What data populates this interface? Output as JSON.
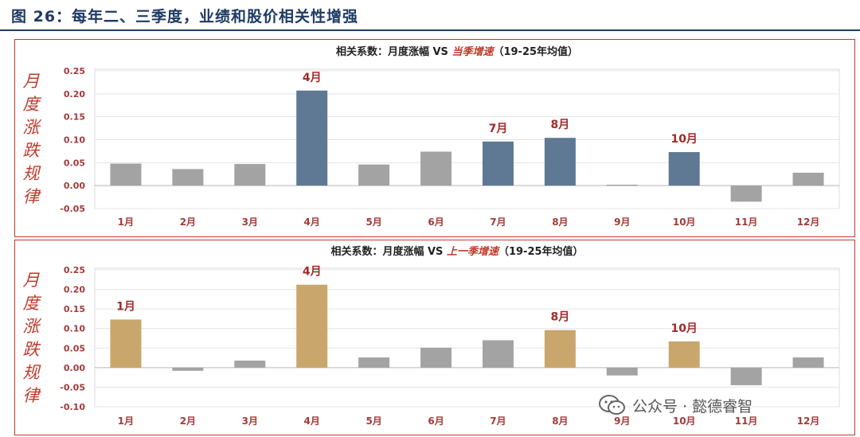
{
  "figure": {
    "title": "图 26：每年二、三季度，业绩和股价相关性增强"
  },
  "side_label": "月度涨跌规律",
  "watermark": "公众号 · 懿德睿智",
  "colors": {
    "highlight_blue": "#5f7893",
    "highlight_gold": "#c9a66b",
    "gray": "#a3a3a3",
    "axis_red": "#a33a3a",
    "title_rule": "#1f3a63"
  },
  "chart_data": [
    {
      "type": "bar",
      "title_prefix": "相关系数：月度涨幅 VS ",
      "title_em": "当季增速",
      "title_suffix": "（19-25年均值）",
      "categories": [
        "1月",
        "2月",
        "3月",
        "4月",
        "5月",
        "6月",
        "7月",
        "8月",
        "9月",
        "10月",
        "11月",
        "12月"
      ],
      "values": [
        0.048,
        0.036,
        0.047,
        0.207,
        0.046,
        0.074,
        0.096,
        0.104,
        0.002,
        0.073,
        -0.035,
        0.028
      ],
      "highlighted": [
        "4月",
        "7月",
        "8月",
        "10月"
      ],
      "ylim": [
        -0.05,
        0.25
      ],
      "yticks": [
        "-0.05",
        "0.00",
        "0.05",
        "0.10",
        "0.15",
        "0.20",
        "0.25"
      ],
      "grid": true
    },
    {
      "type": "bar",
      "title_prefix": "相关系数：月度涨幅 VS ",
      "title_em": "上一季增速",
      "title_suffix": "（19-25年均值）",
      "categories": [
        "1月",
        "2月",
        "3月",
        "4月",
        "5月",
        "6月",
        "7月",
        "8月",
        "9月",
        "10月",
        "11月",
        "12月"
      ],
      "values": [
        0.123,
        -0.008,
        0.018,
        0.212,
        0.026,
        0.051,
        0.07,
        0.096,
        -0.02,
        0.067,
        -0.045,
        0.026
      ],
      "highlighted": [
        "1月",
        "4月",
        "8月",
        "10月"
      ],
      "ylim": [
        -0.1,
        0.25
      ],
      "yticks": [
        "-0.10",
        "-0.05",
        "0.00",
        "0.05",
        "0.10",
        "0.15",
        "0.20",
        "0.25"
      ],
      "grid": true
    }
  ]
}
